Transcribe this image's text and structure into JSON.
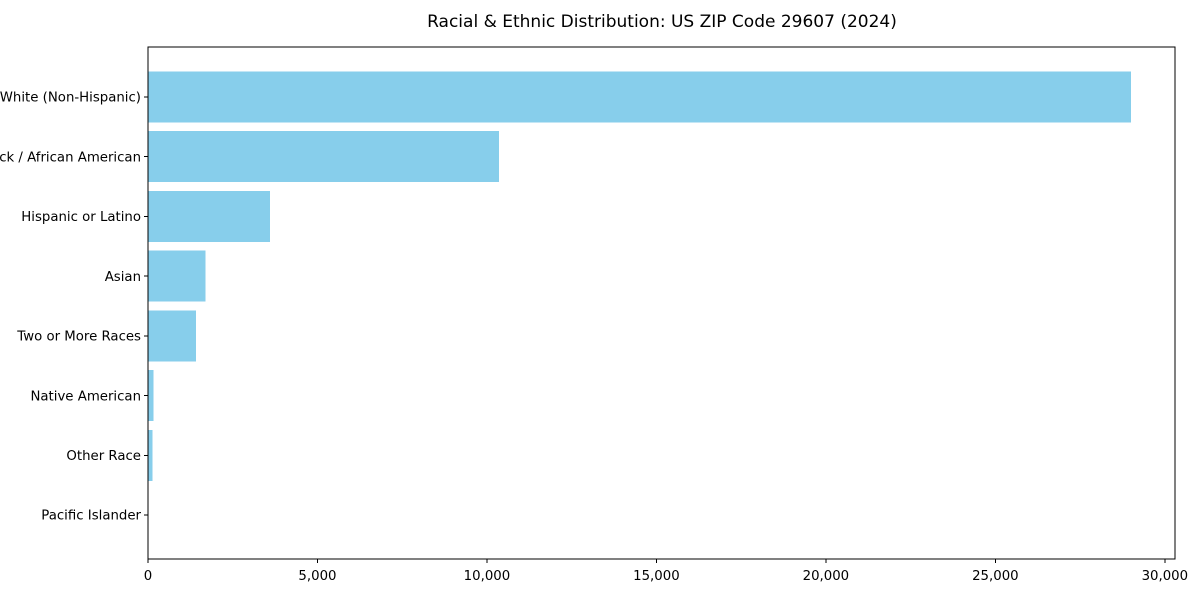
{
  "chart_data": {
    "type": "bar",
    "orientation": "horizontal",
    "title": "Racial & Ethnic Distribution: US ZIP Code 29607 (2024)",
    "categories": [
      "White (Non-Hispanic)",
      "Black / African American",
      "Hispanic or Latino",
      "Asian",
      "Two or More Races",
      "Native American",
      "Other Race",
      "Pacific Islander"
    ],
    "values": [
      29000,
      10350,
      3600,
      1700,
      1420,
      155,
      130,
      15
    ],
    "xlabel": "",
    "ylabel": "",
    "xlim": [
      0,
      30300
    ],
    "x_ticks": [
      0,
      5000,
      10000,
      15000,
      20000,
      25000,
      30000
    ],
    "x_tick_labels": [
      "0",
      "5,000",
      "10,000",
      "15,000",
      "20,000",
      "25,000",
      "30,000"
    ],
    "bar_color": "#87CEEB",
    "axis_color": "#000000",
    "background_color": "#ffffff",
    "grid": false,
    "legend": null
  }
}
